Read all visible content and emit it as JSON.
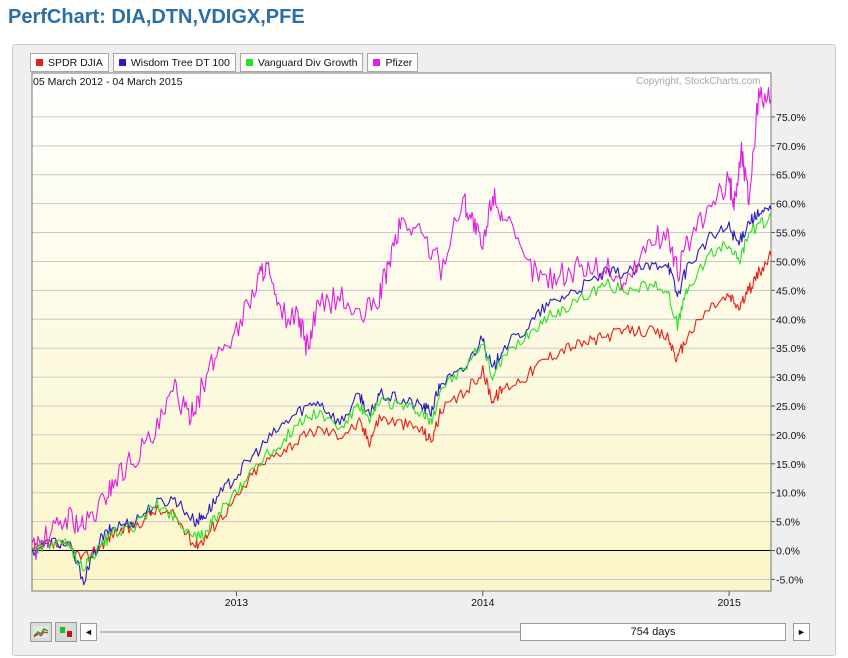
{
  "page": {
    "title": "PerfChart: DIA,DTN,VDIGX,PFE"
  },
  "legend": [
    {
      "label": "SPDR DJIA",
      "color": "#e8201a"
    },
    {
      "label": "Wisdom Tree DT 100",
      "color": "#2b1cc0"
    },
    {
      "label": "Vanguard Div Growth",
      "color": "#28e028"
    },
    {
      "label": "Pfizer",
      "color": "#e21ee2"
    }
  ],
  "header": {
    "date_range": "05 March 2012 - 04 March 2015",
    "copyright": "Copyright, StockCharts.com"
  },
  "toolbar": {
    "range_label": "754 days",
    "left_arrow": "◄",
    "right_arrow": "►"
  },
  "icons": {
    "line_chart_button": "line-chart-icon",
    "histogram_button": "histogram-icon"
  },
  "chart_data": {
    "type": "line",
    "y_unit": "%",
    "ylim": [
      -7,
      80
    ],
    "yticks": [
      -5,
      0,
      5,
      10,
      15,
      20,
      25,
      30,
      35,
      40,
      45,
      50,
      55,
      60,
      65,
      70,
      75
    ],
    "ytick_labels": [
      "-5.0%",
      "0.0%",
      "5.0%",
      "10.0%",
      "15.0%",
      "20.0%",
      "25.0%",
      "30.0%",
      "35.0%",
      "40.0%",
      "45.0%",
      "50.0%",
      "55.0%",
      "60.0%",
      "65.0%",
      "70.0%",
      "75.0%"
    ],
    "xlim": [
      2012.17,
      2015.17
    ],
    "xticks": [
      2013.0,
      2014.0,
      2015.0
    ],
    "xtick_labels": [
      "2013",
      "2014",
      "2015"
    ],
    "grid": true,
    "legend_position": "top-left",
    "series": [
      {
        "name": "SPDR DJIA",
        "color": "#e8201a",
        "x": [
          2012.17,
          2012.25,
          2012.32,
          2012.38,
          2012.45,
          2012.5,
          2012.58,
          2012.67,
          2012.75,
          2012.83,
          2012.87,
          2012.92,
          2013.0,
          2013.08,
          2013.17,
          2013.25,
          2013.33,
          2013.42,
          2013.5,
          2013.54,
          2013.58,
          2013.67,
          2013.75,
          2013.79,
          2013.83,
          2013.92,
          2014.0,
          2014.04,
          2014.08,
          2014.17,
          2014.25,
          2014.33,
          2014.42,
          2014.5,
          2014.58,
          2014.67,
          2014.75,
          2014.79,
          2014.83,
          2014.92,
          2015.0,
          2015.04,
          2015.08,
          2015.12,
          2015.17
        ],
        "y": [
          0,
          1,
          0.5,
          -1.5,
          1,
          3,
          4,
          7,
          6,
          1,
          2,
          5,
          9,
          14,
          17,
          19,
          21,
          20,
          22,
          19,
          23,
          22,
          21,
          19,
          24,
          27,
          31,
          26,
          28,
          30,
          33,
          35,
          36,
          37,
          38,
          38,
          37,
          33,
          37,
          42,
          44,
          42,
          45,
          48,
          51
        ]
      },
      {
        "name": "Wisdom Tree DT 100",
        "color": "#2b1cc0",
        "x": [
          2012.17,
          2012.25,
          2012.32,
          2012.38,
          2012.45,
          2012.5,
          2012.58,
          2012.67,
          2012.75,
          2012.83,
          2012.87,
          2012.92,
          2013.0,
          2013.08,
          2013.17,
          2013.25,
          2013.33,
          2013.42,
          2013.5,
          2013.54,
          2013.58,
          2013.67,
          2013.75,
          2013.79,
          2013.83,
          2013.92,
          2014.0,
          2014.04,
          2014.08,
          2014.17,
          2014.25,
          2014.33,
          2014.42,
          2014.5,
          2014.58,
          2014.67,
          2014.75,
          2014.79,
          2014.83,
          2014.92,
          2015.0,
          2015.04,
          2015.08,
          2015.12,
          2015.17
        ],
        "y": [
          0,
          1.5,
          1,
          -5,
          2,
          4,
          5,
          8,
          9,
          5,
          6,
          9,
          13,
          17,
          21,
          24,
          26,
          22,
          27,
          23,
          27,
          26,
          25,
          24,
          29,
          31,
          37,
          31,
          35,
          38,
          42,
          44,
          46,
          48,
          48,
          49,
          50,
          44,
          49,
          54,
          56,
          53,
          57,
          58,
          59
        ]
      },
      {
        "name": "Vanguard Div Growth",
        "color": "#28e028",
        "x": [
          2012.17,
          2012.25,
          2012.32,
          2012.38,
          2012.45,
          2012.5,
          2012.58,
          2012.67,
          2012.75,
          2012.83,
          2012.87,
          2012.92,
          2013.0,
          2013.08,
          2013.17,
          2013.25,
          2013.33,
          2013.42,
          2013.5,
          2013.54,
          2013.58,
          2013.67,
          2013.75,
          2013.79,
          2013.83,
          2013.92,
          2014.0,
          2014.04,
          2014.08,
          2014.17,
          2014.25,
          2014.33,
          2014.42,
          2014.5,
          2014.58,
          2014.67,
          2014.75,
          2014.79,
          2014.83,
          2014.92,
          2015.0,
          2015.04,
          2015.08,
          2015.12,
          2015.17
        ],
        "y": [
          0,
          1,
          1,
          -3,
          1,
          3,
          4,
          8,
          6,
          2,
          3,
          6,
          10,
          15,
          18,
          22,
          24,
          21,
          25,
          22,
          26,
          25,
          24,
          22,
          28,
          31,
          36,
          30,
          33,
          37,
          40,
          42,
          44,
          46,
          45,
          46,
          45,
          39,
          45,
          51,
          53,
          50,
          55,
          56,
          58
        ]
      },
      {
        "name": "Pfizer",
        "color": "#e21ee2",
        "x": [
          2012.17,
          2012.25,
          2012.32,
          2012.38,
          2012.45,
          2012.5,
          2012.58,
          2012.67,
          2012.75,
          2012.8,
          2012.85,
          2012.92,
          2013.0,
          2013.08,
          2013.12,
          2013.17,
          2013.25,
          2013.29,
          2013.33,
          2013.42,
          2013.5,
          2013.58,
          2013.62,
          2013.67,
          2013.75,
          2013.83,
          2013.92,
          2013.96,
          2014.0,
          2014.04,
          2014.08,
          2014.17,
          2014.25,
          2014.33,
          2014.42,
          2014.5,
          2014.58,
          2014.67,
          2014.75,
          2014.79,
          2014.83,
          2014.92,
          2015.0,
          2015.02,
          2015.05,
          2015.08,
          2015.12,
          2015.17
        ],
        "y": [
          0,
          3,
          6,
          4,
          8,
          12,
          16,
          20,
          28,
          23,
          27,
          34,
          38,
          46,
          50,
          41,
          40,
          35,
          42,
          44,
          40,
          44,
          50,
          57,
          55,
          49,
          61,
          57,
          52,
          62,
          58,
          50,
          47,
          48,
          49,
          49,
          46,
          53,
          55,
          48,
          53,
          59,
          64,
          60,
          69,
          61,
          79,
          78
        ]
      }
    ]
  }
}
